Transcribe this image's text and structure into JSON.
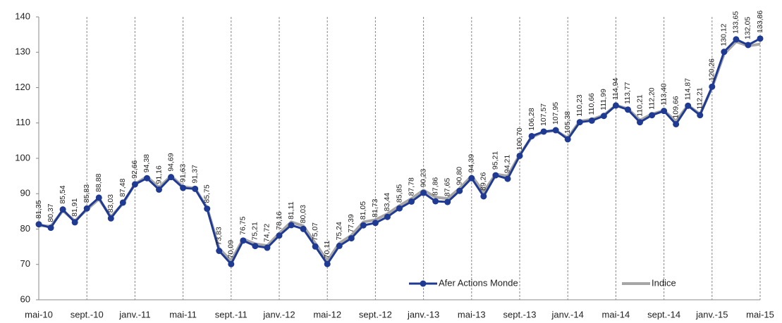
{
  "chart_data": {
    "type": "line",
    "categories": [
      "mai-10",
      null,
      null,
      null,
      "sept.-10",
      null,
      null,
      null,
      "janv.-11",
      null,
      null,
      null,
      "mai-11",
      null,
      null,
      null,
      "sept.-11",
      null,
      null,
      null,
      "janv.-12",
      null,
      null,
      null,
      "mai-12",
      null,
      null,
      null,
      "sept.-12",
      null,
      null,
      null,
      "janv.-13",
      null,
      null,
      null,
      "mai-13",
      null,
      null,
      null,
      "sept.-13",
      null,
      null,
      null,
      "janv.-14",
      null,
      null,
      null,
      "mai-14",
      null,
      null,
      null,
      "sept.-14",
      null,
      null,
      null,
      "janv.-15",
      null,
      null,
      null,
      "mai-15"
    ],
    "series": [
      {
        "name": "Afer Actions Monde",
        "color": "#1f3a93",
        "values": [
          81.35,
          80.37,
          85.54,
          81.91,
          85.83,
          88.88,
          83.03,
          87.48,
          92.66,
          94.38,
          91.16,
          94.69,
          91.63,
          91.37,
          85.75,
          73.83,
          70.09,
          76.75,
          75.21,
          74.72,
          78.16,
          81.11,
          80.03,
          75.07,
          70.11,
          75.24,
          77.39,
          81.05,
          81.73,
          83.44,
          85.85,
          87.78,
          90.23,
          87.86,
          87.65,
          90.8,
          94.39,
          89.26,
          95.21,
          94.21,
          100.7,
          106.28,
          107.57,
          107.95,
          105.38,
          110.23,
          110.66,
          111.99,
          114.94,
          113.77,
          110.21,
          112.2,
          113.4,
          109.66,
          114.87,
          112.21,
          120.26,
          130.12,
          133.65,
          132.05,
          133.86
        ],
        "value_labels": [
          "81,35",
          "80,37",
          "85,54",
          "81,91",
          "85,83",
          "88,88",
          "83,03",
          "87,48",
          "92,66",
          "94,38",
          "91,16",
          "94,69",
          "91,63",
          "91,37",
          "85,75",
          "73,83",
          "70,09",
          "76,75",
          "75,21",
          "74,72",
          "78,16",
          "81,11",
          "80,03",
          "75,07",
          "70,11",
          "75,24",
          "77,39",
          "81,05",
          "81,73",
          "83,44",
          "85,85",
          "87,78",
          "90,23",
          "87,86",
          "87,65",
          "90,80",
          "94,39",
          "89,26",
          "95,21",
          "94,21",
          "100,70",
          "106,28",
          "107,57",
          "107,95",
          "105,38",
          "110,23",
          "110,66",
          "111,99",
          "114,94",
          "113,77",
          "110,21",
          "112,20",
          "113,40",
          "109,66",
          "114,87",
          "112,21",
          "120,26",
          "130,12",
          "133,65",
          "132,05",
          "133,86"
        ]
      },
      {
        "name": "Indice",
        "color": "#a6a6a6",
        "values": [
          81.0,
          80.8,
          85.2,
          82.3,
          85.5,
          88.5,
          83.5,
          87.2,
          92.8,
          94.8,
          91.8,
          95.0,
          92.0,
          91.5,
          86.0,
          74.5,
          71.0,
          77.2,
          75.8,
          75.3,
          78.8,
          82.0,
          80.9,
          76.0,
          71.0,
          76.0,
          78.2,
          82.0,
          82.6,
          84.3,
          86.6,
          88.6,
          91.0,
          89.0,
          88.6,
          91.5,
          95.0,
          90.5,
          95.5,
          95.0,
          101.0,
          106.0,
          107.5,
          107.8,
          105.8,
          110.5,
          111.0,
          112.2,
          115.0,
          114.0,
          110.8,
          112.5,
          113.5,
          110.5,
          115.0,
          112.5,
          120.0,
          129.5,
          133.0,
          131.8,
          132.3
        ]
      }
    ],
    "ylim": [
      60,
      140
    ],
    "yticks": [
      60,
      70,
      80,
      90,
      100,
      110,
      120,
      130,
      140
    ],
    "grid": false,
    "legend": "bottom-right"
  }
}
